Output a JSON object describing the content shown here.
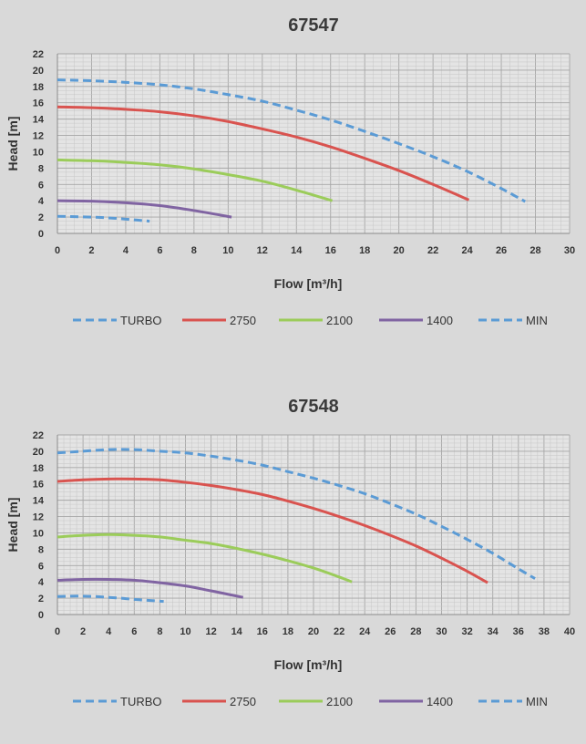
{
  "legend_colors": {
    "TURBO": "#5b9bd5",
    "2750": "#d9534f",
    "2100": "#9bcc5a",
    "1400": "#8064a2",
    "MIN": "#5b9bd5"
  },
  "chart_data": [
    {
      "type": "line",
      "title": "67547",
      "xlabel": "Flow [m³/h]",
      "ylabel": "Head [m]",
      "xlim": [
        0,
        30
      ],
      "ylim": [
        0,
        22
      ],
      "xticks": [
        0,
        2,
        4,
        6,
        8,
        10,
        12,
        14,
        16,
        18,
        20,
        22,
        24,
        26,
        28,
        30
      ],
      "yticks": [
        0,
        2,
        4,
        6,
        8,
        10,
        12,
        14,
        16,
        18,
        20,
        22
      ],
      "grid": true,
      "legend_position": "bottom",
      "series": [
        {
          "name": "TURBO",
          "dashed": true,
          "x": [
            0,
            2,
            4,
            6,
            8,
            10,
            12,
            14,
            16,
            18,
            20,
            22,
            24,
            26,
            27.4
          ],
          "y": [
            18.8,
            18.7,
            18.5,
            18.2,
            17.7,
            17.0,
            16.2,
            15.1,
            13.9,
            12.5,
            11.0,
            9.4,
            7.6,
            5.5,
            3.9
          ]
        },
        {
          "name": "2750",
          "dashed": false,
          "x": [
            0,
            2,
            4,
            6,
            8,
            10,
            12,
            14,
            16,
            18,
            20,
            22,
            24.1
          ],
          "y": [
            15.5,
            15.4,
            15.2,
            14.9,
            14.4,
            13.7,
            12.8,
            11.8,
            10.6,
            9.2,
            7.7,
            6.0,
            4.1
          ]
        },
        {
          "name": "2100",
          "dashed": false,
          "x": [
            0,
            2,
            4,
            6,
            8,
            10,
            12,
            14,
            16.1
          ],
          "y": [
            9.0,
            8.9,
            8.7,
            8.4,
            7.9,
            7.2,
            6.4,
            5.3,
            4.0
          ]
        },
        {
          "name": "1400",
          "dashed": false,
          "x": [
            0,
            2,
            4,
            6,
            8,
            10.2
          ],
          "y": [
            4.0,
            3.95,
            3.75,
            3.4,
            2.8,
            2.0
          ]
        },
        {
          "name": "MIN",
          "dashed": true,
          "x": [
            0,
            1,
            2,
            3,
            4,
            5.4
          ],
          "y": [
            2.1,
            2.05,
            2.0,
            1.9,
            1.75,
            1.5
          ]
        }
      ]
    },
    {
      "type": "line",
      "title": "67548",
      "xlabel": "Flow [m³/h]",
      "ylabel": "Head [m]",
      "xlim": [
        0,
        40
      ],
      "ylim": [
        0,
        22
      ],
      "xticks": [
        0,
        2,
        4,
        6,
        8,
        10,
        12,
        14,
        16,
        18,
        20,
        22,
        24,
        26,
        28,
        30,
        32,
        34,
        36,
        38,
        40
      ],
      "yticks": [
        0,
        2,
        4,
        6,
        8,
        10,
        12,
        14,
        16,
        18,
        20,
        22
      ],
      "grid": true,
      "legend_position": "bottom",
      "series": [
        {
          "name": "TURBO",
          "dashed": true,
          "x": [
            0,
            2,
            4,
            6,
            8,
            10,
            12,
            14,
            16,
            18,
            20,
            22,
            24,
            26,
            28,
            30,
            32,
            34,
            36,
            37.3
          ],
          "y": [
            19.8,
            20.0,
            20.2,
            20.2,
            20.0,
            19.8,
            19.4,
            18.9,
            18.3,
            17.5,
            16.7,
            15.8,
            14.8,
            13.6,
            12.3,
            10.8,
            9.2,
            7.5,
            5.6,
            4.4
          ]
        },
        {
          "name": "2750",
          "dashed": false,
          "x": [
            0,
            2,
            4,
            6,
            8,
            10,
            12,
            14,
            16,
            18,
            20,
            22,
            24,
            26,
            28,
            30,
            32,
            33.6
          ],
          "y": [
            16.3,
            16.5,
            16.6,
            16.6,
            16.5,
            16.2,
            15.8,
            15.3,
            14.7,
            13.9,
            13.0,
            12.0,
            10.9,
            9.7,
            8.4,
            6.9,
            5.3,
            3.9
          ]
        },
        {
          "name": "2100",
          "dashed": false,
          "x": [
            0,
            2,
            4,
            6,
            8,
            10,
            12,
            14,
            16,
            18,
            20,
            22,
            23.0
          ],
          "y": [
            9.5,
            9.7,
            9.8,
            9.7,
            9.5,
            9.1,
            8.7,
            8.1,
            7.4,
            6.6,
            5.7,
            4.6,
            4.0
          ]
        },
        {
          "name": "1400",
          "dashed": false,
          "x": [
            0,
            2,
            4,
            6,
            8,
            10,
            12,
            14.5
          ],
          "y": [
            4.2,
            4.3,
            4.3,
            4.2,
            3.9,
            3.5,
            2.9,
            2.1
          ]
        },
        {
          "name": "MIN",
          "dashed": true,
          "x": [
            0,
            1,
            2,
            3,
            4,
            5,
            6,
            7,
            8.3
          ],
          "y": [
            2.2,
            2.25,
            2.25,
            2.2,
            2.1,
            2.0,
            1.85,
            1.75,
            1.6
          ]
        }
      ]
    }
  ]
}
